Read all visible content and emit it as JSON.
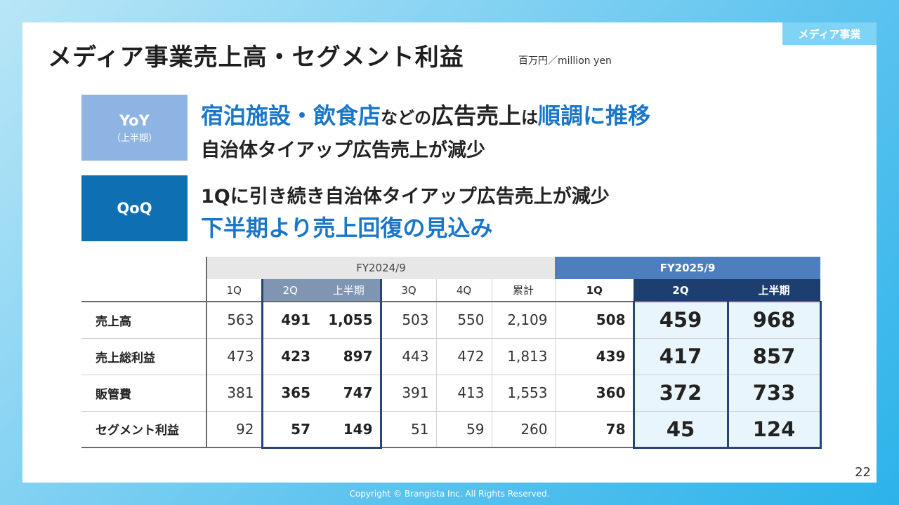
{
  "section_tag": "メディア事業",
  "title": "メディア事業売上高・セグメント利益",
  "unit": "百万円／million yen",
  "yoy": {
    "label": "YoY",
    "sublabel": "（上半期）",
    "line1_a": "宿泊施設・飲食店",
    "line1_b": "などの",
    "line1_c": "広告売上",
    "line1_d": "は",
    "line1_e": "順調に推移",
    "line2": "自治体タイアップ広告売上が減少"
  },
  "qoq": {
    "label": "QoQ",
    "line1": "1Qに引き続き自治体タイアップ広告売上が減少",
    "line2": "下半期より売上回復の見込み"
  },
  "table": {
    "fy2024_label": "FY2024/9",
    "fy2025_label": "FY2025/9",
    "cols_2024": [
      "1Q",
      "2Q",
      "上半期",
      "3Q",
      "4Q",
      "累計"
    ],
    "cols_2025": [
      "1Q",
      "2Q",
      "上半期"
    ],
    "rows": [
      {
        "label": "売上高",
        "fy2024": [
          "563",
          "491",
          "1,055",
          "503",
          "550",
          "2,109"
        ],
        "fy2025": [
          "508",
          "459",
          "968"
        ]
      },
      {
        "label": "売上総利益",
        "fy2024": [
          "473",
          "423",
          "897",
          "443",
          "472",
          "1,813"
        ],
        "fy2025": [
          "439",
          "417",
          "857"
        ]
      },
      {
        "label": "販管費",
        "fy2024": [
          "381",
          "365",
          "747",
          "391",
          "413",
          "1,553"
        ],
        "fy2025": [
          "360",
          "372",
          "733"
        ]
      },
      {
        "label": "セグメント利益",
        "fy2024": [
          "92",
          "57",
          "149",
          "51",
          "59",
          "260"
        ],
        "fy2025": [
          "78",
          "45",
          "124"
        ]
      }
    ]
  },
  "page_number": "22",
  "copyright": "Copyright © Brangista Inc. All Rights Reserved."
}
